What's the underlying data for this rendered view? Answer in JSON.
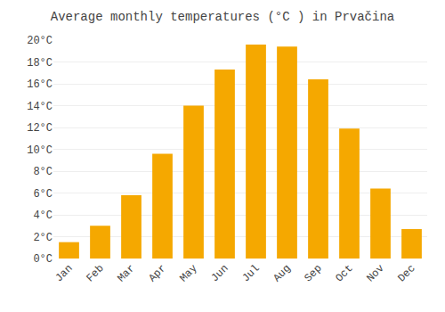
{
  "chart_data": {
    "type": "bar",
    "title": "Average monthly temperatures (°C ) in Prvačina",
    "categories": [
      "Jan",
      "Feb",
      "Mar",
      "Apr",
      "May",
      "Jun",
      "Jul",
      "Aug",
      "Sep",
      "Oct",
      "Nov",
      "Dec"
    ],
    "values": [
      1.5,
      3.0,
      5.8,
      9.6,
      14.0,
      17.3,
      19.6,
      19.4,
      16.4,
      11.9,
      6.4,
      2.7
    ],
    "color": "#F5A800",
    "ylim": [
      0,
      20
    ],
    "yticks": [
      {
        "value": 0,
        "label": "0°C"
      },
      {
        "value": 2,
        "label": "2°C"
      },
      {
        "value": 4,
        "label": "4°C"
      },
      {
        "value": 6,
        "label": "6°C"
      },
      {
        "value": 8,
        "label": "8°C"
      },
      {
        "value": 10,
        "label": "10°C"
      },
      {
        "value": 12,
        "label": "12°C"
      },
      {
        "value": 14,
        "label": "14°C"
      },
      {
        "value": 16,
        "label": "16°C"
      },
      {
        "value": 18,
        "label": "18°C"
      },
      {
        "value": 20,
        "label": "20°C"
      }
    ],
    "grid": true
  }
}
